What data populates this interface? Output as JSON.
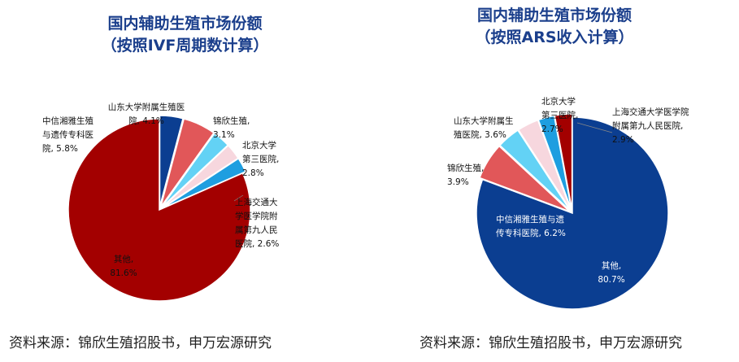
{
  "chart_data": [
    {
      "type": "pie",
      "title_lines": [
        "国内辅助生殖市场份额",
        "（按照IVF周期数计算）"
      ],
      "source": "资料来源：锦欣生殖招股书，申万宏源研究",
      "slices": [
        {
          "key": "s1",
          "label_lines": [
            "山东大学附属生殖医",
            "院, 4.1%"
          ],
          "value": 4.1,
          "color": "#0b3e91"
        },
        {
          "key": "s2",
          "label_lines": [
            "中信湘雅生殖",
            "与遗传专科医",
            "院, 5.8%"
          ],
          "value": 5.8,
          "color": "#e15759"
        },
        {
          "key": "s3",
          "label_lines": [
            "锦欣生殖,",
            "3.1%"
          ],
          "value": 3.1,
          "color": "#63d2f5"
        },
        {
          "key": "s4",
          "label_lines": [
            "北京大学",
            "第三医院,",
            "2.8%"
          ],
          "value": 2.8,
          "color": "#f7d7de"
        },
        {
          "key": "s5",
          "label_lines": [
            "上海交通大",
            "学医学院附",
            "属第九人民",
            "医院, 2.6%"
          ],
          "value": 2.6,
          "color": "#1e9ee0"
        },
        {
          "key": "s6",
          "label_lines": [
            "其他,",
            "81.6%"
          ],
          "value": 81.6,
          "color": "#a30000"
        }
      ]
    },
    {
      "type": "pie",
      "title_lines": [
        "国内辅助生殖市场份额",
        "（按照ARS收入计算）"
      ],
      "source": "资料来源：锦欣生殖招股书，申万宏源研究",
      "slices": [
        {
          "key": "r1",
          "label_lines": [
            "其他,",
            "80.7%"
          ],
          "value": 80.7,
          "color": "#0b3e91"
        },
        {
          "key": "r2",
          "label_lines": [
            "中信湘雅生殖与遗",
            "传专科医院, 6.2%"
          ],
          "value": 6.2,
          "color": "#e15759"
        },
        {
          "key": "r3",
          "label_lines": [
            "锦欣生殖,",
            "3.9%"
          ],
          "value": 3.9,
          "color": "#63d2f5"
        },
        {
          "key": "r4",
          "label_lines": [
            "山东大学附属生",
            "殖医院, 3.6%"
          ],
          "value": 3.6,
          "color": "#f7d7de"
        },
        {
          "key": "r5",
          "label_lines": [
            "北京大学",
            "第三医院,",
            "2.7%"
          ],
          "value": 2.7,
          "color": "#1e9ee0"
        },
        {
          "key": "r6",
          "label_lines": [
            "上海交通大学医学院",
            "附属第九人民医院,",
            "2.9%"
          ],
          "value": 2.9,
          "color": "#a30000"
        }
      ]
    }
  ]
}
